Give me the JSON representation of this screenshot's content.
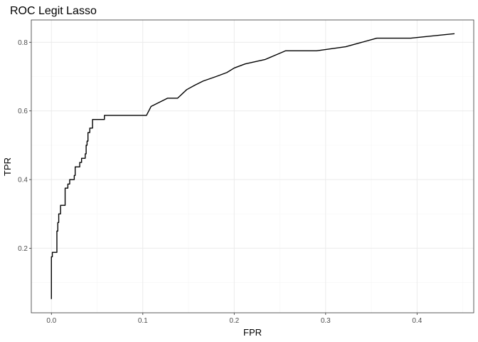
{
  "chart_data": {
    "type": "line",
    "title": "ROC Legit Lasso",
    "xlabel": "FPR",
    "ylabel": "TPR",
    "xlim": [
      -0.022,
      0.462
    ],
    "ylim": [
      0.012,
      0.865
    ],
    "x_ticks": [
      0.0,
      0.1,
      0.2,
      0.3,
      0.4
    ],
    "x_tick_labels": [
      "0.0",
      "0.1",
      "0.2",
      "0.3",
      "0.4"
    ],
    "y_ticks": [
      0.2,
      0.4,
      0.6,
      0.8
    ],
    "y_tick_labels": [
      "0.2",
      "0.4",
      "0.6",
      "0.8"
    ],
    "grid": true,
    "legend": "none",
    "colors": {
      "line": "#000000",
      "grid_major": "#ebebeb",
      "grid_minor": "#f5f5f5",
      "panel_border": "#333333"
    },
    "series": [
      {
        "x": [
          0.0,
          0.0,
          0.001,
          0.001,
          0.006,
          0.006,
          0.007,
          0.007,
          0.008,
          0.008,
          0.009,
          0.009,
          0.01,
          0.01,
          0.013,
          0.013,
          0.015,
          0.015,
          0.018,
          0.018,
          0.02,
          0.02,
          0.024,
          0.024,
          0.025,
          0.025,
          0.026,
          0.026,
          0.031,
          0.031,
          0.033,
          0.033,
          0.036,
          0.036,
          0.037,
          0.037,
          0.038,
          0.038,
          0.039,
          0.039,
          0.04,
          0.04,
          0.041,
          0.041,
          0.042,
          0.042,
          0.045,
          0.045,
          0.048,
          0.048,
          0.052,
          0.052,
          0.058,
          0.058,
          0.061,
          0.061,
          0.104,
          0.109,
          0.127,
          0.138,
          0.148,
          0.157,
          0.166,
          0.18,
          0.192,
          0.2,
          0.212,
          0.234,
          0.256,
          0.29,
          0.322,
          0.356,
          0.393,
          0.441
        ],
        "y": [
          0.052,
          0.175,
          0.175,
          0.188,
          0.188,
          0.25,
          0.25,
          0.275,
          0.275,
          0.3,
          0.3,
          0.3,
          0.3,
          0.325,
          0.325,
          0.325,
          0.325,
          0.375,
          0.375,
          0.387,
          0.387,
          0.4,
          0.4,
          0.4,
          0.4,
          0.412,
          0.412,
          0.437,
          0.437,
          0.45,
          0.45,
          0.462,
          0.462,
          0.462,
          0.462,
          0.475,
          0.475,
          0.5,
          0.5,
          0.512,
          0.512,
          0.537,
          0.537,
          0.537,
          0.537,
          0.55,
          0.55,
          0.575,
          0.575,
          0.575,
          0.575,
          0.575,
          0.575,
          0.587,
          0.587,
          0.587,
          0.587,
          0.613,
          0.637,
          0.637,
          0.662,
          0.675,
          0.687,
          0.7,
          0.712,
          0.725,
          0.737,
          0.75,
          0.775,
          0.775,
          0.787,
          0.812,
          0.812,
          0.825
        ]
      }
    ]
  }
}
